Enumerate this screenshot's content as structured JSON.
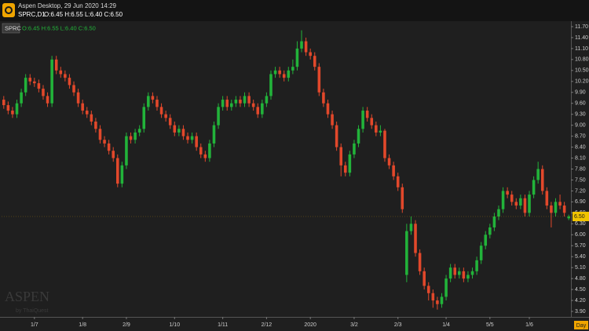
{
  "chart_data": {
    "type": "candlestick",
    "window_title": "Aspen Desktop, 29 Jun 2020 14:29",
    "title": "SPRC,D1",
    "ohlc_label": "O:6.45 H:6.55 L:6.40 C:6.50",
    "series_name": "SPRC",
    "watermark": "ASPEN",
    "watermark_sub": "by ThaiQuest",
    "x_unit": "Day",
    "up_color": "#22b33a",
    "down_color": "#e2482b",
    "grid": false,
    "categories": [
      null,
      null,
      null,
      null,
      null,
      null,
      null,
      "1/7",
      null,
      null,
      null,
      null,
      null,
      null,
      null,
      null,
      null,
      null,
      "1/8",
      null,
      null,
      null,
      null,
      null,
      null,
      null,
      null,
      null,
      "2/9",
      null,
      null,
      null,
      null,
      null,
      null,
      null,
      null,
      null,
      null,
      "1/10",
      null,
      null,
      null,
      null,
      null,
      null,
      null,
      null,
      null,
      null,
      "1/11",
      null,
      null,
      null,
      null,
      null,
      null,
      null,
      null,
      null,
      "2/12",
      null,
      null,
      null,
      null,
      null,
      null,
      null,
      null,
      null,
      "2020",
      null,
      null,
      null,
      null,
      null,
      null,
      null,
      null,
      null,
      "3/2",
      null,
      null,
      null,
      null,
      null,
      null,
      null,
      null,
      null,
      "2/3",
      null,
      null,
      null,
      null,
      null,
      null,
      null,
      null,
      null,
      null,
      "1/4",
      null,
      null,
      null,
      null,
      null,
      null,
      null,
      null,
      null,
      "5/5",
      null,
      null,
      null,
      null,
      null,
      null,
      null,
      null,
      "1/6",
      null,
      null,
      null,
      null,
      null,
      null,
      null,
      null,
      null
    ],
    "open": [
      9.7,
      9.55,
      9.4,
      9.3,
      9.6,
      9.9,
      10.3,
      10.2,
      10.15,
      10.0,
      9.8,
      9.6,
      10.8,
      10.5,
      10.4,
      10.3,
      10.1,
      9.9,
      9.6,
      9.4,
      9.3,
      9.1,
      8.9,
      8.6,
      8.5,
      8.3,
      8.1,
      7.4,
      7.9,
      8.7,
      8.6,
      8.8,
      8.9,
      9.5,
      9.8,
      9.7,
      9.5,
      9.3,
      9.2,
      9.0,
      8.8,
      8.9,
      8.7,
      8.6,
      8.7,
      8.4,
      8.2,
      8.1,
      8.5,
      9.0,
      9.5,
      9.7,
      9.5,
      9.6,
      9.7,
      9.6,
      9.8,
      9.6,
      9.5,
      9.3,
      9.6,
      9.8,
      10.4,
      10.5,
      10.4,
      10.3,
      10.5,
      10.6,
      11.1,
      11.3,
      11.0,
      10.9,
      10.6,
      9.9,
      9.6,
      9.3,
      9.0,
      8.4,
      7.9,
      7.7,
      8.2,
      8.5,
      8.9,
      9.4,
      9.2,
      9.0,
      8.8,
      8.85,
      8.1,
      7.9,
      7.6,
      7.3,
      4.9,
      6.1,
      6.3,
      5.5,
      5.0,
      4.6,
      4.4,
      4.2,
      4.1,
      4.3,
      4.8,
      5.1,
      4.9,
      5.0,
      4.8,
      4.9,
      5.0,
      5.3,
      5.7,
      6.0,
      6.2,
      6.5,
      6.7,
      7.2,
      7.1,
      6.9,
      6.8,
      7.0,
      6.6,
      7.1,
      7.5,
      7.8,
      7.2,
      6.8,
      6.6,
      6.9,
      6.8,
      6.45
    ],
    "high": [
      9.8,
      9.65,
      9.5,
      9.7,
      10.0,
      10.4,
      10.4,
      10.3,
      10.25,
      10.1,
      9.9,
      10.9,
      10.9,
      10.6,
      10.5,
      10.4,
      10.2,
      10.0,
      9.7,
      9.5,
      9.4,
      9.2,
      9.0,
      8.7,
      8.6,
      8.4,
      8.2,
      8.0,
      8.8,
      8.8,
      8.9,
      9.0,
      9.6,
      9.9,
      9.9,
      9.8,
      9.6,
      9.4,
      9.3,
      9.1,
      9.0,
      9.0,
      8.8,
      8.8,
      8.8,
      8.5,
      8.3,
      8.6,
      9.1,
      9.6,
      9.8,
      9.8,
      9.7,
      9.8,
      9.8,
      9.9,
      9.9,
      9.7,
      9.6,
      9.7,
      9.9,
      10.5,
      10.6,
      10.6,
      10.5,
      10.6,
      10.8,
      11.3,
      11.6,
      11.4,
      11.1,
      11.0,
      10.7,
      10.0,
      9.7,
      9.4,
      9.1,
      8.5,
      8.0,
      8.3,
      8.6,
      9.0,
      9.5,
      9.5,
      9.3,
      9.1,
      9.0,
      8.9,
      8.2,
      8.0,
      7.7,
      7.4,
      6.3,
      6.5,
      6.4,
      5.6,
      5.1,
      4.7,
      4.5,
      4.3,
      4.4,
      4.9,
      5.2,
      5.2,
      5.1,
      5.1,
      5.0,
      5.1,
      5.4,
      5.8,
      6.1,
      6.3,
      6.6,
      6.8,
      7.3,
      7.3,
      7.2,
      7.0,
      7.1,
      7.1,
      7.2,
      7.6,
      8.0,
      7.9,
      7.3,
      6.9,
      7.0,
      7.1,
      6.9,
      6.55
    ],
    "low": [
      9.45,
      9.3,
      9.2,
      9.2,
      9.5,
      9.8,
      10.1,
      10.05,
      9.9,
      9.7,
      9.5,
      9.5,
      10.4,
      10.3,
      10.2,
      10.0,
      9.8,
      9.5,
      9.3,
      9.2,
      9.0,
      8.8,
      8.5,
      8.4,
      8.2,
      8.0,
      7.3,
      7.3,
      7.8,
      8.5,
      8.5,
      8.7,
      8.8,
      9.4,
      9.6,
      9.4,
      9.2,
      9.1,
      8.9,
      8.7,
      8.7,
      8.6,
      8.5,
      8.5,
      8.3,
      8.1,
      8.0,
      8.0,
      8.4,
      8.9,
      9.4,
      9.4,
      9.4,
      9.5,
      9.5,
      9.5,
      9.5,
      9.4,
      9.2,
      9.2,
      9.5,
      9.7,
      10.3,
      10.3,
      10.2,
      10.2,
      10.4,
      10.5,
      11.0,
      10.9,
      10.8,
      10.5,
      9.8,
      9.5,
      9.2,
      8.9,
      8.3,
      7.6,
      7.6,
      7.6,
      8.1,
      8.4,
      8.8,
      9.1,
      8.9,
      8.7,
      8.7,
      8.0,
      7.8,
      7.5,
      7.2,
      6.6,
      4.7,
      6.0,
      5.4,
      4.9,
      4.5,
      4.2,
      4.0,
      3.95,
      4.0,
      4.2,
      4.7,
      4.8,
      4.8,
      4.7,
      4.7,
      4.8,
      4.9,
      5.2,
      5.6,
      5.9,
      6.1,
      6.4,
      6.6,
      7.0,
      6.8,
      6.7,
      6.7,
      6.5,
      6.5,
      7.0,
      7.4,
      7.1,
      6.7,
      6.2,
      6.5,
      6.7,
      6.5,
      6.4
    ],
    "close": [
      9.55,
      9.4,
      9.3,
      9.6,
      9.9,
      10.3,
      10.2,
      10.15,
      10.0,
      9.8,
      9.6,
      10.8,
      10.5,
      10.4,
      10.3,
      10.1,
      9.9,
      9.6,
      9.4,
      9.3,
      9.1,
      8.9,
      8.6,
      8.5,
      8.3,
      8.1,
      7.4,
      7.9,
      8.7,
      8.6,
      8.8,
      8.9,
      9.5,
      9.8,
      9.7,
      9.5,
      9.3,
      9.2,
      9.0,
      8.8,
      8.9,
      8.7,
      8.6,
      8.7,
      8.4,
      8.2,
      8.1,
      8.5,
      9.0,
      9.5,
      9.7,
      9.5,
      9.6,
      9.7,
      9.6,
      9.8,
      9.6,
      9.5,
      9.3,
      9.6,
      9.8,
      10.4,
      10.5,
      10.4,
      10.3,
      10.5,
      10.6,
      11.1,
      11.3,
      11.0,
      10.9,
      10.6,
      9.9,
      9.6,
      9.3,
      9.0,
      8.4,
      7.9,
      7.7,
      8.2,
      8.5,
      8.9,
      9.4,
      9.2,
      9.0,
      8.8,
      8.85,
      8.1,
      7.9,
      7.6,
      7.3,
      6.7,
      6.1,
      6.3,
      5.5,
      5.0,
      4.6,
      4.4,
      4.2,
      4.1,
      4.3,
      4.8,
      5.1,
      4.9,
      5.0,
      4.8,
      4.9,
      5.0,
      5.3,
      5.7,
      6.0,
      6.2,
      6.5,
      6.7,
      7.2,
      7.1,
      6.9,
      6.8,
      7.0,
      6.6,
      7.1,
      7.5,
      7.8,
      7.2,
      6.8,
      6.6,
      6.9,
      6.8,
      6.6,
      6.5
    ],
    "last_price": {
      "value": 6.5,
      "label": "6.50"
    },
    "ylim": [
      3.75,
      11.85
    ],
    "yticks": [
      {
        "value": 3.9,
        "label": "3.90"
      },
      {
        "value": 4.2,
        "label": "4.20"
      },
      {
        "value": 4.5,
        "label": "4.50"
      },
      {
        "value": 4.8,
        "label": "4.80"
      },
      {
        "value": 5.1,
        "label": "5.10"
      },
      {
        "value": 5.4,
        "label": "5.40"
      },
      {
        "value": 5.7,
        "label": "5.70"
      },
      {
        "value": 6.0,
        "label": "6.00"
      },
      {
        "value": 6.3,
        "label": "6.30"
      },
      {
        "value": 6.6,
        "label": "6.60"
      },
      {
        "value": 6.9,
        "label": "6.90"
      },
      {
        "value": 7.2,
        "label": "7.20"
      },
      {
        "value": 7.5,
        "label": "7.50"
      },
      {
        "value": 7.8,
        "label": "7.80"
      },
      {
        "value": 8.1,
        "label": "8.10"
      },
      {
        "value": 8.4,
        "label": "8.40"
      },
      {
        "value": 8.7,
        "label": "8.70"
      },
      {
        "value": 9.0,
        "label": "9.00"
      },
      {
        "value": 9.3,
        "label": "9.30"
      },
      {
        "value": 9.6,
        "label": "9.60"
      },
      {
        "value": 9.9,
        "label": "9.90"
      },
      {
        "value": 10.2,
        "label": "10.20"
      },
      {
        "value": 10.5,
        "label": "10.50"
      },
      {
        "value": 10.8,
        "label": "10.80"
      },
      {
        "value": 11.1,
        "label": "11.10"
      },
      {
        "value": 11.4,
        "label": "11.40"
      },
      {
        "value": 11.7,
        "label": "11.70"
      }
    ]
  }
}
